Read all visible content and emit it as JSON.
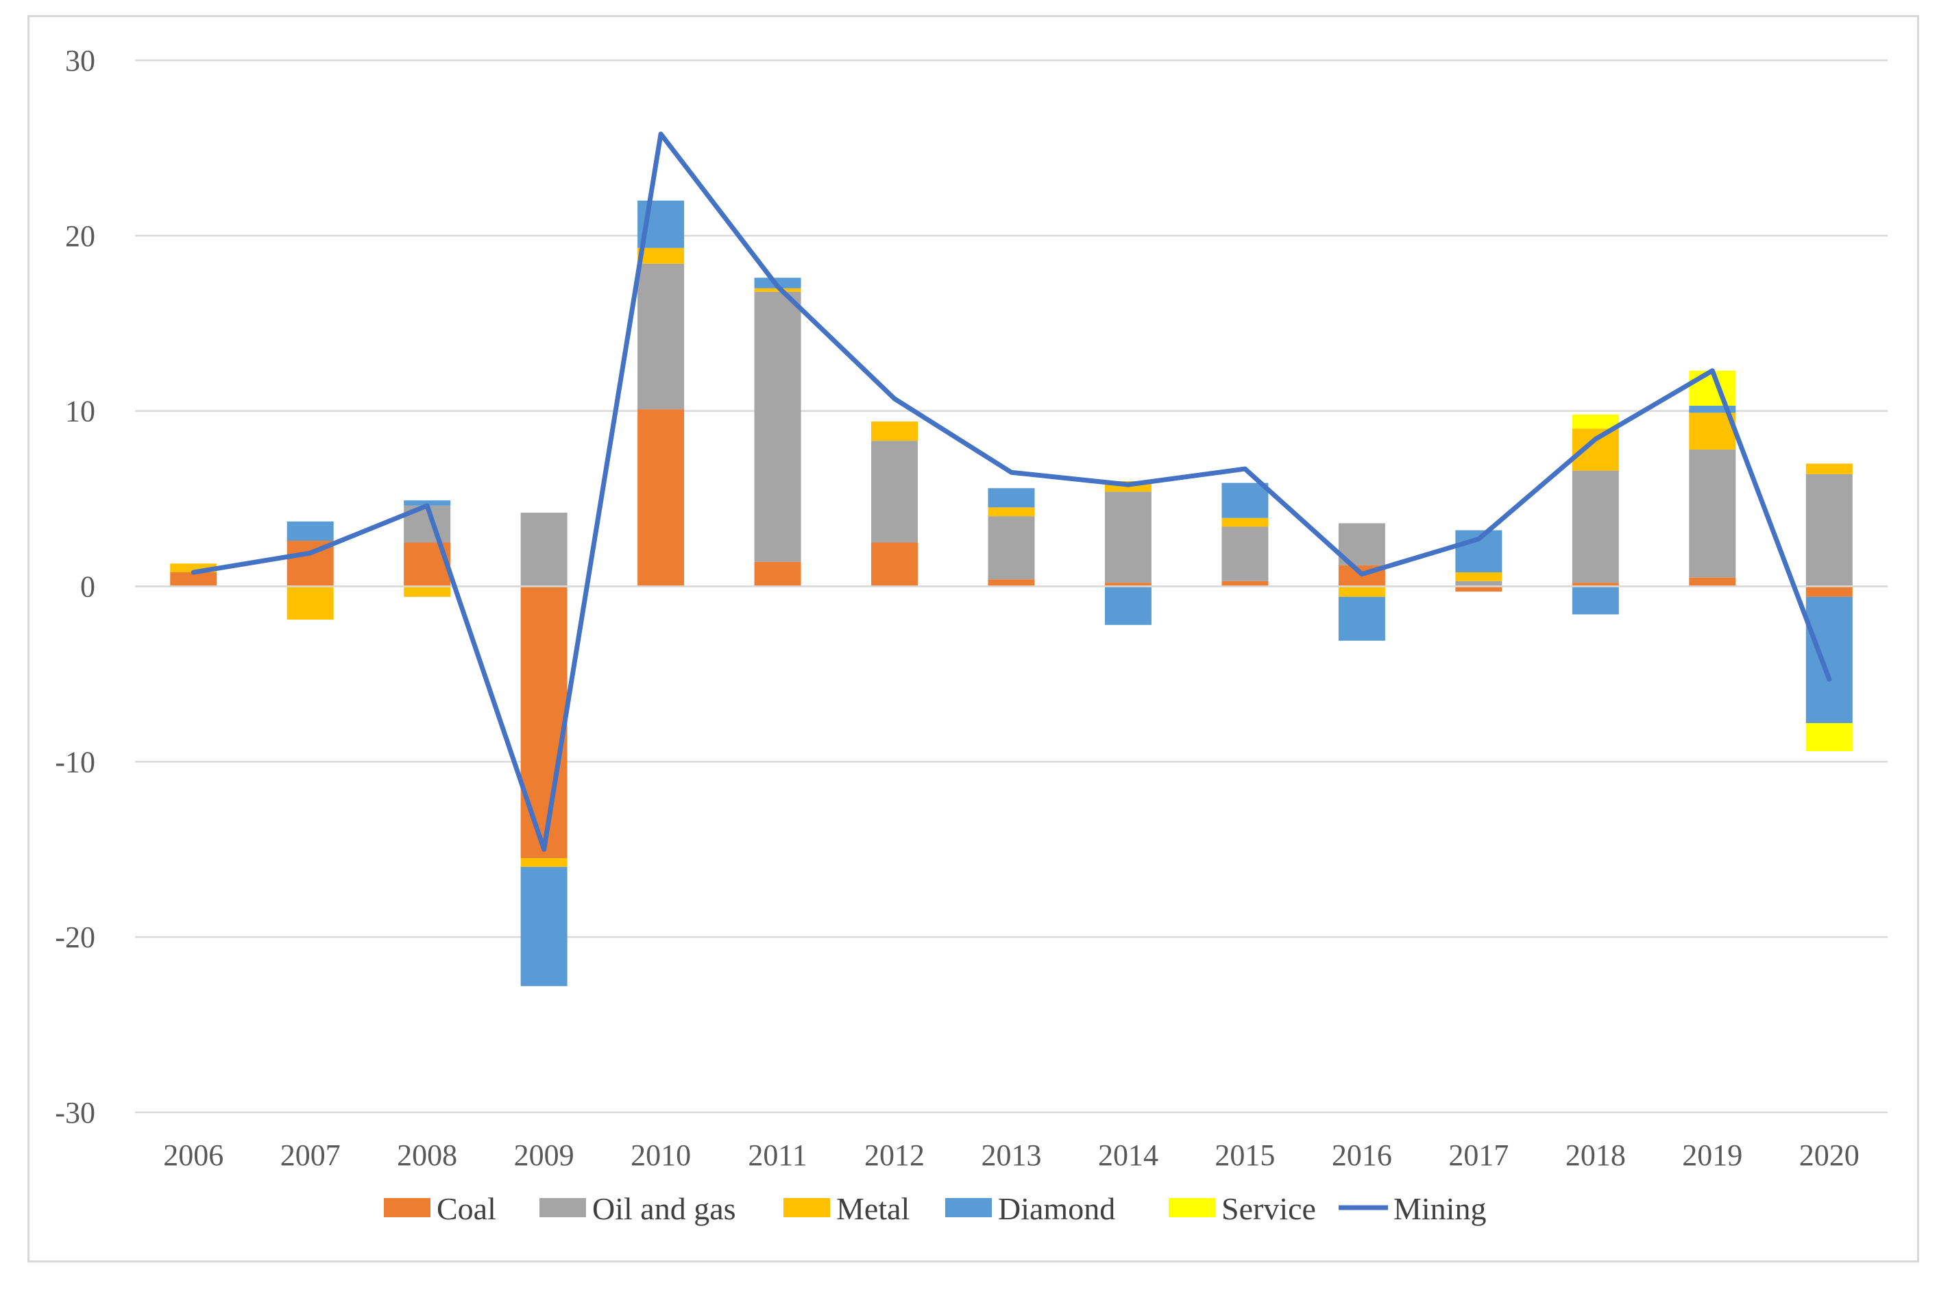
{
  "chart_data": {
    "type": "bar",
    "stacked": true,
    "title": "",
    "xlabel": "",
    "ylabel": "",
    "ylim": [
      -30,
      30
    ],
    "yticks": [
      "30",
      "20",
      "10",
      "0",
      "-10",
      "-20",
      "-30"
    ],
    "ytick_values": [
      30,
      20,
      10,
      0,
      -10,
      -20,
      -30
    ],
    "grid": true,
    "legend_position": "bottom",
    "categories": [
      "2006",
      "2007",
      "2008",
      "2009",
      "2010",
      "2011",
      "2012",
      "2013",
      "2014",
      "2015",
      "2016",
      "2017",
      "2018",
      "2019",
      "2020"
    ],
    "series": [
      {
        "name": "Coal",
        "type": "bar",
        "color": "#ED7D31",
        "values": [
          0.8,
          2.6,
          2.5,
          -15.5,
          10.1,
          1.4,
          2.5,
          0.4,
          0.2,
          0.3,
          1.2,
          -0.3,
          0.2,
          0.5,
          -0.6
        ]
      },
      {
        "name": "Oil and gas",
        "type": "bar",
        "color": "#A5A5A5",
        "values": [
          0.0,
          0.0,
          2.1,
          4.2,
          8.3,
          15.4,
          5.8,
          3.6,
          5.2,
          3.1,
          2.4,
          0.3,
          6.4,
          7.3,
          6.4
        ]
      },
      {
        "name": "Metal",
        "type": "bar",
        "color": "#FFC000",
        "values": [
          0.5,
          -1.9,
          -0.6,
          -0.5,
          0.9,
          0.2,
          1.1,
          0.5,
          0.6,
          0.5,
          -0.6,
          0.5,
          2.4,
          2.1,
          0.6
        ]
      },
      {
        "name": "Diamond",
        "type": "bar",
        "color": "#5B9BD5",
        "values": [
          0.0,
          1.1,
          0.3,
          -6.8,
          2.7,
          0.6,
          0.0,
          1.1,
          -2.2,
          2.0,
          -2.5,
          2.4,
          -1.6,
          0.4,
          -7.2
        ]
      },
      {
        "name": "Service",
        "type": "bar",
        "color": "#FFFF00",
        "values": [
          0.0,
          0.0,
          0.0,
          0.0,
          0.0,
          0.0,
          0.0,
          0.0,
          0.0,
          0.0,
          0.0,
          0.0,
          0.8,
          2.0,
          -1.6
        ]
      },
      {
        "name": "Mining",
        "type": "line",
        "color": "#4472C4",
        "values": [
          0.8,
          1.9,
          4.6,
          -15.0,
          25.8,
          17.1,
          10.7,
          6.5,
          5.8,
          6.7,
          0.7,
          2.7,
          8.4,
          12.3,
          -5.3
        ]
      }
    ]
  }
}
